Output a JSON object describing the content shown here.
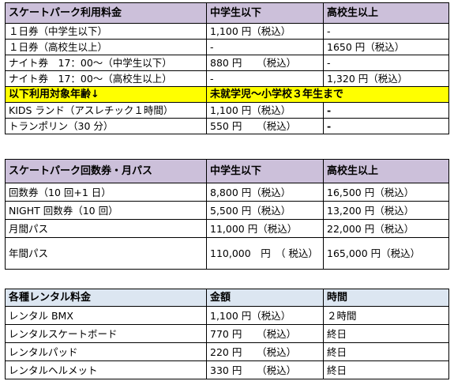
{
  "park_fees": {
    "header": [
      "スケートパーク利用料金",
      "中学生以下",
      "高校生以上"
    ],
    "rows": [
      [
        "１日券（中学生以下）",
        "1,100 円（税込）",
        "-"
      ],
      [
        "１日券（高校生以上）",
        "-",
        "1650 円（税込）"
      ],
      [
        "ナイト券　17：00～（中学生以下）",
        "880 円　　（税込）",
        "-"
      ],
      [
        "ナイト券　17：00～（高校生以上）",
        "-",
        "1,320 円（税込）"
      ]
    ],
    "highlight": [
      "以下利用対象年齢↓",
      "未就学児～小学校３年生まで"
    ],
    "kids_rows": [
      [
        "KIDS ランド（アスレチック１時間）",
        "1,100 円（税込）",
        "-"
      ],
      [
        "トランポリン（30 分）",
        "550 円　　（税込）",
        "-"
      ]
    ]
  },
  "passes": {
    "header": [
      "スケートパーク回数券・月パス",
      "中学生以下",
      "高校生以上"
    ],
    "rows": [
      [
        "回数券（10 回+1 日）",
        "8,800 円（税込）",
        "16,500 円（税込）"
      ],
      [
        "NIGHT 回数券（10 回）",
        "5,500 円（税込）",
        "13,200 円（税込）"
      ],
      [
        "月間パス",
        "11,000 円（税込）",
        "22,000 円（税込）"
      ],
      [
        "年間パス",
        "110,000　円　（ 税込）",
        "165,000 円（税込）"
      ]
    ]
  },
  "rentals": {
    "header": [
      "各種レンタル料金",
      "金額",
      "時間"
    ],
    "rows": [
      [
        "レンタル BMX",
        "1,100 円（税込）",
        "２時間"
      ],
      [
        "レンタルスケートボード",
        "770 円　　（税込）",
        "終日"
      ],
      [
        "レンタルパッド",
        "220 円　　（税込）",
        "終日"
      ],
      [
        "レンタルヘルメット",
        "330 円　　（税込）",
        "終日"
      ]
    ]
  },
  "colors": {
    "header_lavender": "#ccc0da",
    "header_blue": "#dce6f1",
    "highlight_yellow": "#ffff00"
  }
}
